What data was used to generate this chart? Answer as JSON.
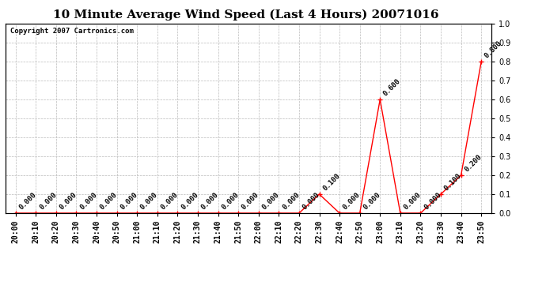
{
  "title": "10 Minute Average Wind Speed (Last 4 Hours) 20071016",
  "copyright": "Copyright 2007 Cartronics.com",
  "x_labels": [
    "20:00",
    "20:10",
    "20:20",
    "20:30",
    "20:40",
    "20:50",
    "21:00",
    "21:10",
    "21:20",
    "21:30",
    "21:40",
    "21:50",
    "22:00",
    "22:10",
    "22:20",
    "22:30",
    "22:40",
    "22:50",
    "23:00",
    "23:10",
    "23:20",
    "23:30",
    "23:40",
    "23:50"
  ],
  "y_values": [
    0.0,
    0.0,
    0.0,
    0.0,
    0.0,
    0.0,
    0.0,
    0.0,
    0.0,
    0.0,
    0.0,
    0.0,
    0.0,
    0.0,
    0.0,
    0.1,
    0.0,
    0.0,
    0.6,
    0.0,
    0.0,
    0.1,
    0.2,
    0.8
  ],
  "line_color": "#ff0000",
  "marker_color": "#ff0000",
  "ylim": [
    0.0,
    1.0
  ],
  "yticks": [
    0.0,
    0.1,
    0.2,
    0.3,
    0.4,
    0.5,
    0.6,
    0.7,
    0.8,
    0.9,
    1.0
  ],
  "grid_color": "#bbbbbb",
  "bg_color": "#ffffff",
  "title_fontsize": 11,
  "tick_fontsize": 7,
  "annotation_fontsize": 6.5,
  "annotation_color": "#000000",
  "copyright_fontsize": 6.5
}
